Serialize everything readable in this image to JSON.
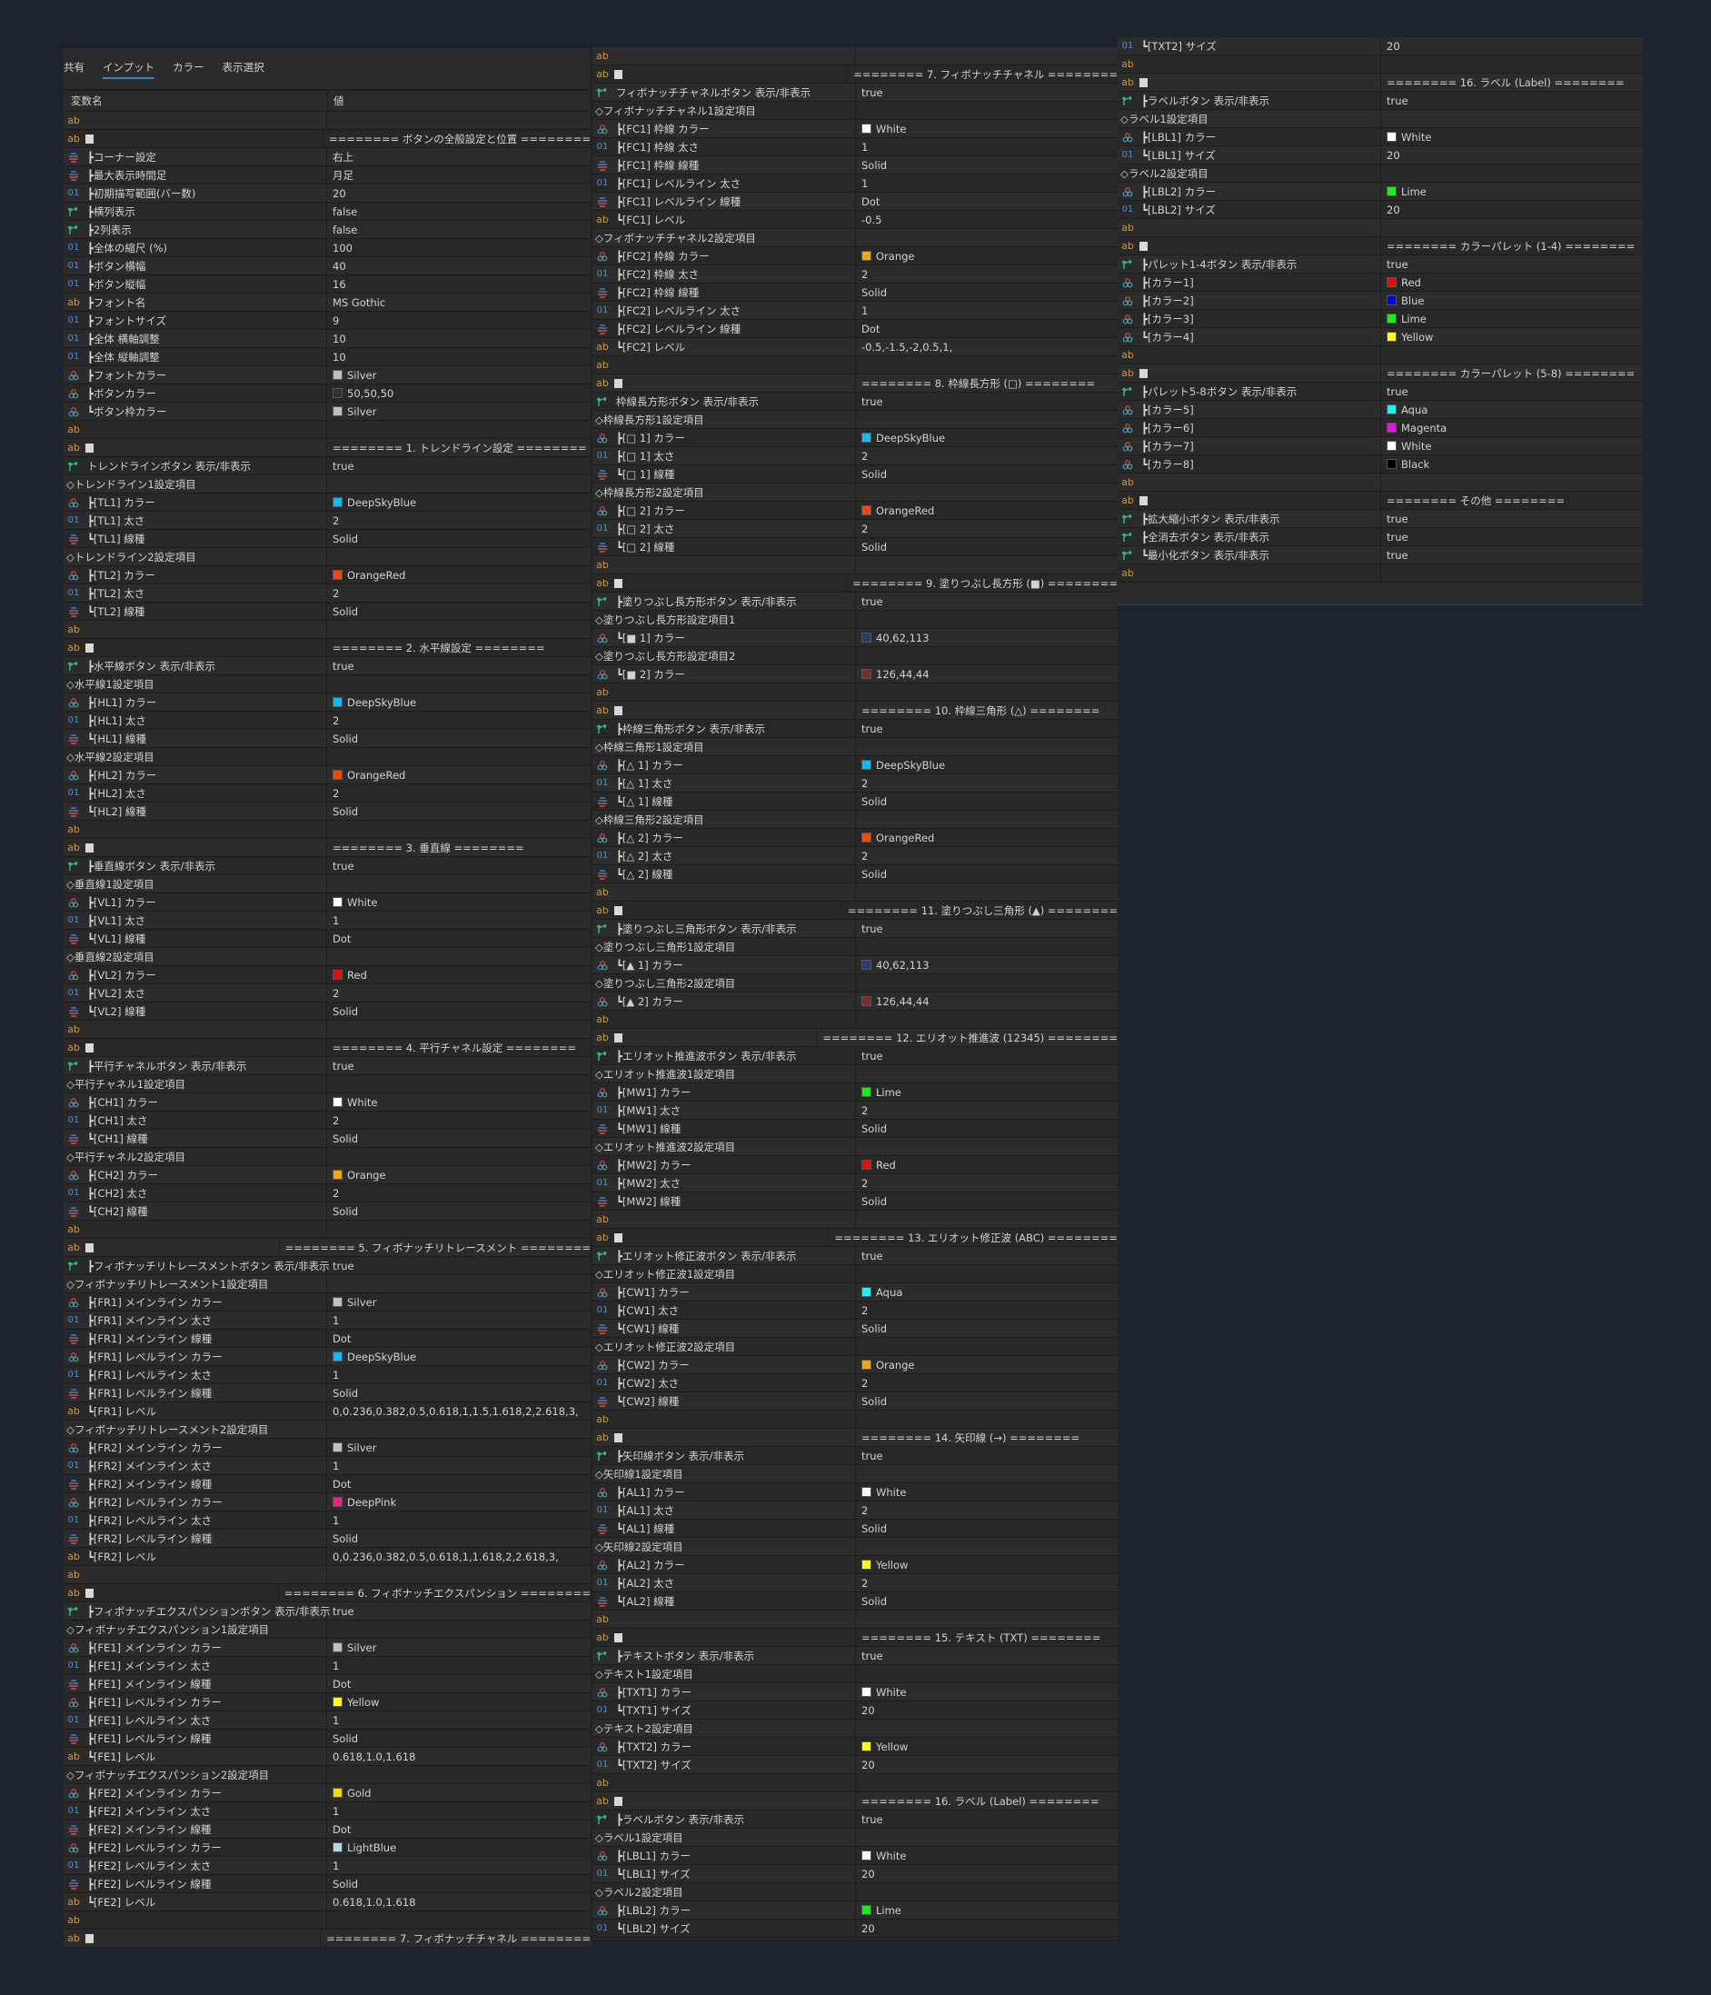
{
  "tabs": [
    "共有",
    "インプット",
    "カラー",
    "表示選択"
  ],
  "active_tab": 1,
  "header": {
    "name": "変数名",
    "value": "値"
  },
  "icon_colors": {
    "string": "#D19A36",
    "int": "#4A90D9",
    "bool": "#2DBE8C",
    "accent": "#2F86C9"
  },
  "icons": {
    "s": "string-ab-icon",
    "h": "string-ab-separator-icon",
    "b": "bool-toggle-icon",
    "e": "enum-list-icon",
    "i": "int-01-icon",
    "c": "color-palette-icon"
  },
  "col1": {
    "rows": [
      [
        "s",
        "",
        ""
      ],
      [
        "h",
        "",
        "======== ボタンの全般設定と位置 ========"
      ],
      [
        "e",
        "┣コーナー設定",
        "右上"
      ],
      [
        "e",
        "┣最大表示時間足",
        "月足"
      ],
      [
        "i",
        "┣初期描写範囲(バー数)",
        "20"
      ],
      [
        "b",
        "┣横列表示",
        "false"
      ],
      [
        "b",
        "┣2列表示",
        "false"
      ],
      [
        "i",
        "┣全体の縮尺 (%)",
        "100"
      ],
      [
        "i",
        "┣ボタン横幅",
        "40"
      ],
      [
        "i",
        "┣ボタン縦幅",
        "16"
      ],
      [
        "s",
        "┣フォント名",
        "MS Gothic"
      ],
      [
        "i",
        "┣フォントサイズ",
        "9"
      ],
      [
        "i",
        "┣全体 横軸調整",
        "10"
      ],
      [
        "i",
        "┣全体 縦軸調整",
        "10"
      ],
      [
        "c",
        "┣フォントカラー",
        "Silver",
        "#C0C0C0"
      ],
      [
        "c",
        "┣ボタンカラー",
        "50,50,50",
        "#323232"
      ],
      [
        "c",
        "┗ボタン枠カラー",
        "Silver",
        "#C0C0C0"
      ],
      [
        "s",
        "",
        ""
      ],
      [
        "h",
        "",
        "======== 1. トレンドライン設定 ========"
      ],
      [
        "b",
        "トレンドラインボタン 表示/非表示",
        "true"
      ],
      [
        "g",
        "◇トレンドライン1設定項目",
        ""
      ],
      [
        "c",
        "┣[TL1] カラー",
        "DeepSkyBlue",
        "#00BFFF"
      ],
      [
        "i",
        "┣[TL1] 太さ",
        "2"
      ],
      [
        "e",
        "┗[TL1] 線種",
        "Solid"
      ],
      [
        "g",
        "◇トレンドライン2設定項目",
        ""
      ],
      [
        "c",
        "┣[TL2] カラー",
        "OrangeRed",
        "#FF4500"
      ],
      [
        "i",
        "┣[TL2] 太さ",
        "2"
      ],
      [
        "e",
        "┗[TL2] 線種",
        "Solid"
      ],
      [
        "s",
        "",
        ""
      ],
      [
        "h",
        "",
        "======== 2. 水平線設定 ========"
      ],
      [
        "b",
        "┣水平線ボタン 表示/非表示",
        "true"
      ],
      [
        "g",
        "◇水平線1設定項目",
        ""
      ],
      [
        "c",
        "┣[HL1] カラー",
        "DeepSkyBlue",
        "#00BFFF"
      ],
      [
        "i",
        "┣[HL1] 太さ",
        "2"
      ],
      [
        "e",
        "┗[HL1] 線種",
        "Solid"
      ],
      [
        "g",
        "◇水平線2設定項目",
        ""
      ],
      [
        "c",
        "┣[HL2] カラー",
        "OrangeRed",
        "#FF4500"
      ],
      [
        "i",
        "┣[HL2] 太さ",
        "2"
      ],
      [
        "e",
        "┗[HL2] 線種",
        "Solid"
      ],
      [
        "s",
        "",
        ""
      ],
      [
        "h",
        "",
        "======== 3. 垂直線 ========"
      ],
      [
        "b",
        "┣垂直線ボタン 表示/非表示",
        "true"
      ],
      [
        "g",
        "◇垂直線1設定項目",
        ""
      ],
      [
        "c",
        "┣[VL1] カラー",
        "White",
        "#FFFFFF"
      ],
      [
        "i",
        "┣[VL1] 太さ",
        "1"
      ],
      [
        "e",
        "┗[VL1] 線種",
        "Dot"
      ],
      [
        "g",
        "◇垂直線2設定項目",
        ""
      ],
      [
        "c",
        "┣[VL2] カラー",
        "Red",
        "#FF0000"
      ],
      [
        "i",
        "┣[VL2] 太さ",
        "2"
      ],
      [
        "e",
        "┗[VL2] 線種",
        "Solid"
      ],
      [
        "s",
        "",
        ""
      ],
      [
        "h",
        "",
        "======== 4. 平行チャネル設定 ========"
      ],
      [
        "b",
        "┣平行チャネルボタン 表示/非表示",
        "true"
      ],
      [
        "g",
        "◇平行チャネル1設定項目",
        ""
      ],
      [
        "c",
        "┣[CH1] カラー",
        "White",
        "#FFFFFF"
      ],
      [
        "i",
        "┣[CH1] 太さ",
        "2"
      ],
      [
        "e",
        "┗[CH1] 線種",
        "Solid"
      ],
      [
        "g",
        "◇平行チャネル2設定項目",
        ""
      ],
      [
        "c",
        "┣[CH2] カラー",
        "Orange",
        "#FFA500"
      ],
      [
        "i",
        "┣[CH2] 太さ",
        "2"
      ],
      [
        "e",
        "┗[CH2] 線種",
        "Solid"
      ],
      [
        "s",
        "",
        ""
      ],
      [
        "h",
        "",
        "======== 5. フィボナッチリトレースメント ========"
      ],
      [
        "b",
        "┣フィボナッチリトレースメントボタン 表示/非表示",
        "true"
      ],
      [
        "g",
        "◇フィボナッチリトレースメント1設定項目",
        ""
      ],
      [
        "c",
        "┣[FR1] メインライン カラー",
        "Silver",
        "#C0C0C0"
      ],
      [
        "i",
        "┣[FR1] メインライン 太さ",
        "1"
      ],
      [
        "e",
        "┣[FR1] メインライン 線種",
        "Dot"
      ],
      [
        "c",
        "┣[FR1] レベルライン カラー",
        "DeepSkyBlue",
        "#00BFFF"
      ],
      [
        "i",
        "┣[FR1] レベルライン 太さ",
        "1"
      ],
      [
        "e",
        "┣[FR1] レベルライン 線種",
        "Solid"
      ],
      [
        "s",
        "┗[FR1] レベル",
        "0,0.236,0.382,0.5,0.618,1,1.5,1.618,2,2.618,3,"
      ],
      [
        "g",
        "◇フィボナッチリトレースメント2設定項目",
        ""
      ],
      [
        "c",
        "┣[FR2] メインライン カラー",
        "Silver",
        "#C0C0C0"
      ],
      [
        "i",
        "┣[FR2] メインライン 太さ",
        "1"
      ],
      [
        "e",
        "┣[FR2] メインライン 線種",
        "Dot"
      ],
      [
        "c",
        "┣[FR2] レベルライン カラー",
        "DeepPink",
        "#FF1493"
      ],
      [
        "i",
        "┣[FR2] レベルライン 太さ",
        "1"
      ],
      [
        "e",
        "┣[FR2] レベルライン 線種",
        "Solid"
      ],
      [
        "s",
        "┗[FR2] レベル",
        "0,0.236,0.382,0.5,0.618,1,1.618,2,2.618,3,"
      ],
      [
        "s",
        "",
        ""
      ],
      [
        "h",
        "",
        "======== 6. フィボナッチエクスパンション ========"
      ],
      [
        "b",
        "┣フィボナッチエクスパンションボタン 表示/非表示",
        "true"
      ],
      [
        "g",
        "◇フィボナッチエクスパンション1設定項目",
        ""
      ],
      [
        "c",
        "┣[FE1] メインライン カラー",
        "Silver",
        "#C0C0C0"
      ],
      [
        "i",
        "┣[FE1] メインライン 太さ",
        "1"
      ],
      [
        "e",
        "┣[FE1] メインライン 線種",
        "Dot"
      ],
      [
        "c",
        "┣[FE1] レベルライン カラー",
        "Yellow",
        "#FFFF00"
      ],
      [
        "i",
        "┣[FE1] レベルライン 太さ",
        "1"
      ],
      [
        "e",
        "┣[FE1] レベルライン 線種",
        "Solid"
      ],
      [
        "s",
        "┗[FE1] レベル",
        "0.618,1.0,1.618"
      ],
      [
        "g",
        "◇フィボナッチエクスパンション2設定項目",
        ""
      ],
      [
        "c",
        "┣[FE2] メインライン カラー",
        "Gold",
        "#FFD700"
      ],
      [
        "i",
        "┣[FE2] メインライン 太さ",
        "1"
      ],
      [
        "e",
        "┣[FE2] メインライン 線種",
        "Dot"
      ],
      [
        "c",
        "┣[FE2] レベルライン カラー",
        "LightBlue",
        "#ADD8E6"
      ],
      [
        "i",
        "┣[FE2] レベルライン 太さ",
        "1"
      ],
      [
        "e",
        "┣[FE2] レベルライン 線種",
        "Solid"
      ],
      [
        "s",
        "┗[FE2] レベル",
        "0.618,1.0,1.618"
      ],
      [
        "s",
        "",
        ""
      ],
      [
        "h",
        "",
        "======== 7. フィボナッチチャネル ========"
      ]
    ]
  },
  "col2": {
    "rows": [
      [
        "s",
        "",
        ""
      ],
      [
        "h",
        "",
        "======== 7. フィボナッチチャネル ========"
      ],
      [
        "b",
        "フィボナッチチャネルボタン 表示/非表示",
        "true"
      ],
      [
        "g",
        "◇フィボナッチチャネル1設定項目",
        ""
      ],
      [
        "c",
        "┣[FC1] 枠線 カラー",
        "White",
        "#FFFFFF"
      ],
      [
        "i",
        "┣[FC1] 枠線 太さ",
        "1"
      ],
      [
        "e",
        "┣[FC1] 枠線 線種",
        "Solid"
      ],
      [
        "i",
        "┣[FC1] レベルライン 太さ",
        "1"
      ],
      [
        "e",
        "┣[FC1] レベルライン 線種",
        "Dot"
      ],
      [
        "s",
        "┗[FC1] レベル",
        "-0.5"
      ],
      [
        "g",
        "◇フィボナッチチャネル2設定項目",
        ""
      ],
      [
        "c",
        "┣[FC2] 枠線 カラー",
        "Orange",
        "#FFA500"
      ],
      [
        "i",
        "┣[FC2] 枠線 太さ",
        "2"
      ],
      [
        "e",
        "┣[FC2] 枠線 線種",
        "Solid"
      ],
      [
        "i",
        "┣[FC2] レベルライン 太さ",
        "1"
      ],
      [
        "e",
        "┣[FC2] レベルライン 線種",
        "Dot"
      ],
      [
        "s",
        "┗[FC2] レベル",
        "-0.5,-1.5,-2,0.5,1,"
      ],
      [
        "s",
        "",
        ""
      ],
      [
        "h",
        "",
        "======== 8. 枠線長方形 (□) ========"
      ],
      [
        "b",
        "枠線長方形ボタン 表示/非表示",
        "true"
      ],
      [
        "g",
        "◇枠線長方形1設定項目",
        ""
      ],
      [
        "c",
        "┣[□ 1] カラー",
        "DeepSkyBlue",
        "#00BFFF"
      ],
      [
        "i",
        "┣[□ 1] 太さ",
        "2"
      ],
      [
        "e",
        "┗[□ 1] 線種",
        "Solid"
      ],
      [
        "g",
        "◇枠線長方形2設定項目",
        ""
      ],
      [
        "c",
        "┣[□ 2] カラー",
        "OrangeRed",
        "#FF4500"
      ],
      [
        "i",
        "┣[□ 2] 太さ",
        "2"
      ],
      [
        "e",
        "┗[□ 2] 線種",
        "Solid"
      ],
      [
        "s",
        "",
        ""
      ],
      [
        "h",
        "",
        "======== 9. 塗りつぶし長方形 (■) ========"
      ],
      [
        "b",
        "┣塗りつぶし長方形ボタン 表示/非表示",
        "true"
      ],
      [
        "g",
        "◇塗りつぶし長方形設定項目1",
        ""
      ],
      [
        "c",
        "┗[■ 1] カラー",
        "40,62,113",
        "#283E71"
      ],
      [
        "g",
        "◇塗りつぶし長方形設定項目2",
        ""
      ],
      [
        "c",
        "┗[■ 2] カラー",
        "126,44,44",
        "#7E2C2C"
      ],
      [
        "s",
        "",
        ""
      ],
      [
        "h",
        "",
        "======== 10. 枠線三角形 (△) ========"
      ],
      [
        "b",
        "┣枠線三角形ボタン 表示/非表示",
        "true"
      ],
      [
        "g",
        "◇枠線三角形1設定項目",
        ""
      ],
      [
        "c",
        "┣[△ 1] カラー",
        "DeepSkyBlue",
        "#00BFFF"
      ],
      [
        "i",
        "┣[△ 1] 太さ",
        "2"
      ],
      [
        "e",
        "┗[△ 1] 線種",
        "Solid"
      ],
      [
        "g",
        "◇枠線三角形2設定項目",
        ""
      ],
      [
        "c",
        "┣[△ 2] カラー",
        "OrangeRed",
        "#FF4500"
      ],
      [
        "i",
        "┣[△ 2] 太さ",
        "2"
      ],
      [
        "e",
        "┗[△ 2] 線種",
        "Solid"
      ],
      [
        "s",
        "",
        ""
      ],
      [
        "h",
        "",
        "======== 11. 塗りつぶし三角形 (▲) ========"
      ],
      [
        "b",
        "┣塗りつぶし三角形ボタン 表示/非表示",
        "true"
      ],
      [
        "g",
        "◇塗りつぶし三角形1設定項目",
        ""
      ],
      [
        "c",
        "┗[▲ 1] カラー",
        "40,62,113",
        "#283E71"
      ],
      [
        "g",
        "◇塗りつぶし三角形2設定項目",
        ""
      ],
      [
        "c",
        "┗[▲ 2] カラー",
        "126,44,44",
        "#7E2C2C"
      ],
      [
        "s",
        "",
        ""
      ],
      [
        "h",
        "",
        "======== 12. エリオット推進波 (12345) ========"
      ],
      [
        "b",
        "┣エリオット推進波ボタン 表示/非表示",
        "true"
      ],
      [
        "g",
        "◇エリオット推進波1設定項目",
        ""
      ],
      [
        "c",
        "┣[MW1] カラー",
        "Lime",
        "#00FF00"
      ],
      [
        "i",
        "┣[MW1] 太さ",
        "2"
      ],
      [
        "e",
        "┗[MW1] 線種",
        "Solid"
      ],
      [
        "g",
        "◇エリオット推進波2設定項目",
        ""
      ],
      [
        "c",
        "┣[MW2] カラー",
        "Red",
        "#FF0000"
      ],
      [
        "i",
        "┣[MW2] 太さ",
        "2"
      ],
      [
        "e",
        "┗[MW2] 線種",
        "Solid"
      ],
      [
        "s",
        "",
        ""
      ],
      [
        "h",
        "",
        "======== 13. エリオット修正波 (ABC) ========"
      ],
      [
        "b",
        "┣エリオット修正波ボタン 表示/非表示",
        "true"
      ],
      [
        "g",
        "◇エリオット修正波1設定項目",
        ""
      ],
      [
        "c",
        "┣[CW1] カラー",
        "Aqua",
        "#00FFFF"
      ],
      [
        "i",
        "┣[CW1] 太さ",
        "2"
      ],
      [
        "e",
        "┗[CW1] 線種",
        "Solid"
      ],
      [
        "g",
        "◇エリオット修正波2設定項目",
        ""
      ],
      [
        "c",
        "┣[CW2] カラー",
        "Orange",
        "#FFA500"
      ],
      [
        "i",
        "┣[CW2] 太さ",
        "2"
      ],
      [
        "e",
        "┗[CW2] 線種",
        "Solid"
      ],
      [
        "s",
        "",
        ""
      ],
      [
        "h",
        "",
        "======== 14. 矢印線 (→) ========"
      ],
      [
        "b",
        "┣矢印線ボタン 表示/非表示",
        "true"
      ],
      [
        "g",
        "◇矢印線1設定項目",
        ""
      ],
      [
        "c",
        "┣[AL1] カラー",
        "White",
        "#FFFFFF"
      ],
      [
        "i",
        "┣[AL1] 太さ",
        "2"
      ],
      [
        "e",
        "┗[AL1] 線種",
        "Solid"
      ],
      [
        "g",
        "◇矢印線2設定項目",
        ""
      ],
      [
        "c",
        "┣[AL2] カラー",
        "Yellow",
        "#FFFF00"
      ],
      [
        "i",
        "┣[AL2] 太さ",
        "2"
      ],
      [
        "e",
        "┗[AL2] 線種",
        "Solid"
      ],
      [
        "s",
        "",
        ""
      ],
      [
        "h",
        "",
        "======== 15. テキスト (TXT) ========"
      ],
      [
        "b",
        "┣テキストボタン 表示/非表示",
        "true"
      ],
      [
        "g",
        "◇テキスト1設定項目",
        ""
      ],
      [
        "c",
        "┣[TXT1] カラー",
        "White",
        "#FFFFFF"
      ],
      [
        "i",
        "┗[TXT1] サイズ",
        "20"
      ],
      [
        "g",
        "◇テキスト2設定項目",
        ""
      ],
      [
        "c",
        "┣[TXT2] カラー",
        "Yellow",
        "#FFFF00"
      ],
      [
        "i",
        "┗[TXT2] サイズ",
        "20"
      ],
      [
        "s",
        "",
        ""
      ],
      [
        "h",
        "",
        "======== 16. ラベル (Label) ========"
      ],
      [
        "b",
        "┣ラベルボタン 表示/非表示",
        "true"
      ],
      [
        "g",
        "◇ラベル1設定項目",
        ""
      ],
      [
        "c",
        "┣[LBL1] カラー",
        "White",
        "#FFFFFF"
      ],
      [
        "i",
        "┗[LBL1] サイズ",
        "20"
      ],
      [
        "g",
        "◇ラベル2設定項目",
        ""
      ],
      [
        "c",
        "┣[LBL2] カラー",
        "Lime",
        "#00FF00"
      ],
      [
        "i",
        "┗[LBL2] サイズ",
        "20"
      ]
    ]
  },
  "col3": {
    "rows": [
      [
        "i",
        "┗[TXT2] サイズ",
        "20"
      ],
      [
        "s",
        "",
        ""
      ],
      [
        "h",
        "",
        "======== 16. ラベル (Label) ========"
      ],
      [
        "b",
        "┣ラベルボタン 表示/非表示",
        "true"
      ],
      [
        "g",
        "◇ラベル1設定項目",
        ""
      ],
      [
        "c",
        "┣[LBL1] カラー",
        "White",
        "#FFFFFF"
      ],
      [
        "i",
        "┗[LBL1] サイズ",
        "20"
      ],
      [
        "g",
        "◇ラベル2設定項目",
        ""
      ],
      [
        "c",
        "┣[LBL2] カラー",
        "Lime",
        "#00FF00"
      ],
      [
        "i",
        "┗[LBL2] サイズ",
        "20"
      ],
      [
        "s",
        "",
        ""
      ],
      [
        "h",
        "",
        "======== カラーパレット (1-4) ========"
      ],
      [
        "b",
        "┣パレット1-4ボタン 表示/非表示",
        "true"
      ],
      [
        "c",
        "┣[カラー1]",
        "Red",
        "#FF0000"
      ],
      [
        "c",
        "┣[カラー2]",
        "Blue",
        "#0000FF"
      ],
      [
        "c",
        "┣[カラー3]",
        "Lime",
        "#00FF00"
      ],
      [
        "c",
        "┗[カラー4]",
        "Yellow",
        "#FFFF00"
      ],
      [
        "s",
        "",
        ""
      ],
      [
        "h",
        "",
        "======== カラーパレット (5-8) ========"
      ],
      [
        "b",
        "┣パレット5-8ボタン 表示/非表示",
        "true"
      ],
      [
        "c",
        "┣[カラー5]",
        "Aqua",
        "#00FFFF"
      ],
      [
        "c",
        "┣[カラー6]",
        "Magenta",
        "#FF00FF"
      ],
      [
        "c",
        "┣[カラー7]",
        "White",
        "#FFFFFF"
      ],
      [
        "c",
        "┗[カラー8]",
        "Black",
        "#000000"
      ],
      [
        "s",
        "",
        ""
      ],
      [
        "h",
        "",
        "======== その他 ========"
      ],
      [
        "b",
        "┣拡大縮小ボタン 表示/非表示",
        "true"
      ],
      [
        "b",
        "┣全消去ボタン 表示/非表示",
        "true"
      ],
      [
        "b",
        "┗最小化ボタン 表示/非表示",
        "true"
      ],
      [
        "s",
        "",
        ""
      ]
    ]
  }
}
